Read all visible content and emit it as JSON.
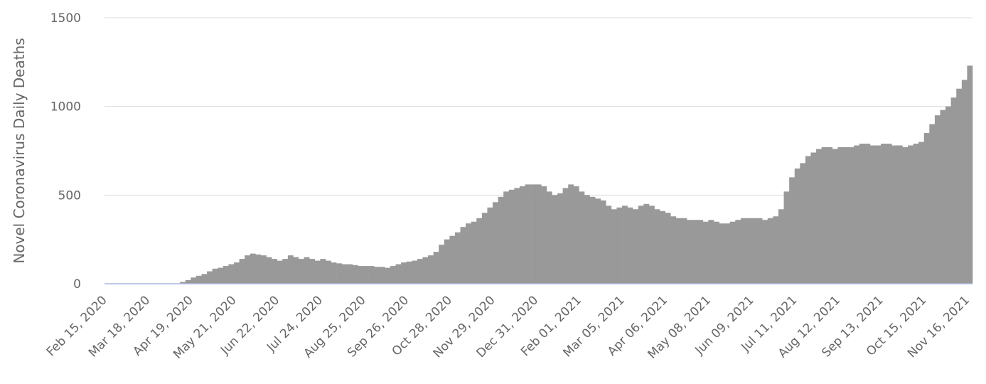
{
  "chart_data": {
    "type": "bar",
    "y_label": "Novel Coronavirus Daily Deaths",
    "color": "#999999",
    "grid": true,
    "ylim": [
      0,
      1500
    ],
    "yticks": [
      0,
      500,
      1000,
      1500
    ],
    "categories": [
      "Feb 15, 2020",
      null,
      null,
      null,
      null,
      null,
      null,
      null,
      "Mar 18, 2020",
      null,
      null,
      null,
      null,
      null,
      null,
      null,
      "Apr 19, 2020",
      null,
      null,
      null,
      null,
      null,
      null,
      null,
      "May 21, 2020",
      null,
      null,
      null,
      null,
      null,
      null,
      null,
      "Jun 22, 2020",
      null,
      null,
      null,
      null,
      null,
      null,
      null,
      "Jul 24, 2020",
      null,
      null,
      null,
      null,
      null,
      null,
      null,
      "Aug 25, 2020",
      null,
      null,
      null,
      null,
      null,
      null,
      null,
      "Sep 26, 2020",
      null,
      null,
      null,
      null,
      null,
      null,
      null,
      "Oct 28, 2020",
      null,
      null,
      null,
      null,
      null,
      null,
      null,
      "Nov 29, 2020",
      null,
      null,
      null,
      null,
      null,
      null,
      null,
      "Dec 31, 2020",
      null,
      null,
      null,
      null,
      null,
      null,
      null,
      "Feb 01, 2021",
      null,
      null,
      null,
      null,
      null,
      null,
      null,
      "Mar 05, 2021",
      null,
      null,
      null,
      null,
      null,
      null,
      null,
      "Apr 06, 2021",
      null,
      null,
      null,
      null,
      null,
      null,
      null,
      "May 08, 2021",
      null,
      null,
      null,
      null,
      null,
      null,
      null,
      "Jun 09, 2021",
      null,
      null,
      null,
      null,
      null,
      null,
      null,
      "Jul 11, 2021",
      null,
      null,
      null,
      null,
      null,
      null,
      null,
      "Aug 12, 2021",
      null,
      null,
      null,
      null,
      null,
      null,
      null,
      "Sep 13, 2021",
      null,
      null,
      null,
      null,
      null,
      null,
      null,
      "Oct 15, 2021",
      null,
      null,
      null,
      null,
      null,
      null,
      null,
      "Nov 16, 2021"
    ],
    "values": [
      0,
      0,
      0,
      0,
      0,
      0,
      0,
      0,
      0,
      0,
      0,
      0,
      0,
      0,
      10,
      20,
      35,
      45,
      55,
      70,
      85,
      90,
      100,
      110,
      120,
      140,
      160,
      170,
      165,
      160,
      150,
      140,
      130,
      140,
      160,
      150,
      140,
      150,
      140,
      130,
      140,
      130,
      120,
      115,
      110,
      110,
      105,
      100,
      100,
      100,
      95,
      95,
      90,
      100,
      110,
      120,
      125,
      130,
      140,
      150,
      160,
      180,
      220,
      250,
      270,
      290,
      320,
      340,
      350,
      370,
      400,
      430,
      460,
      490,
      520,
      530,
      540,
      550,
      560,
      560,
      560,
      550,
      520,
      500,
      510,
      540,
      560,
      550,
      520,
      500,
      490,
      480,
      470,
      440,
      420,
      430,
      440,
      430,
      420,
      440,
      450,
      440,
      420,
      410,
      400,
      380,
      370,
      370,
      360,
      360,
      360,
      350,
      360,
      350,
      340,
      340,
      350,
      360,
      370,
      370,
      370,
      370,
      360,
      370,
      380,
      420,
      520,
      600,
      650,
      680,
      720,
      740,
      760,
      770,
      770,
      760,
      770,
      770,
      770,
      780,
      790,
      790,
      780,
      780,
      790,
      790,
      780,
      780,
      770,
      780,
      790,
      800,
      850,
      900,
      950,
      980,
      1000,
      1050,
      1100,
      1150,
      1230
    ]
  }
}
